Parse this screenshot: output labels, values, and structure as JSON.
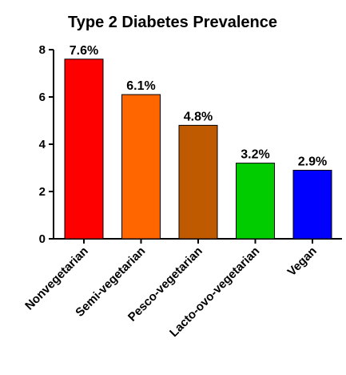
{
  "chart_data": {
    "type": "bar",
    "title": "Type 2 Diabetes Prevalence",
    "xlabel": "",
    "ylabel": "",
    "ylim": [
      0,
      8
    ],
    "yticks": [
      0,
      2,
      4,
      6,
      8
    ],
    "grid": false,
    "categories": [
      "Nonvegetarian",
      "Semi-vegetarian",
      "Pesco-vegetarian",
      "Lacto-ovo-vegetarian",
      "Vegan"
    ],
    "values": [
      7.6,
      6.1,
      4.8,
      3.2,
      2.9
    ],
    "data_labels": [
      "7.6%",
      "6.1%",
      "4.8%",
      "3.2%",
      "2.9%"
    ],
    "colors": [
      "#ff0000",
      "#ff6600",
      "#c05a00",
      "#00cc00",
      "#0000ff"
    ]
  }
}
